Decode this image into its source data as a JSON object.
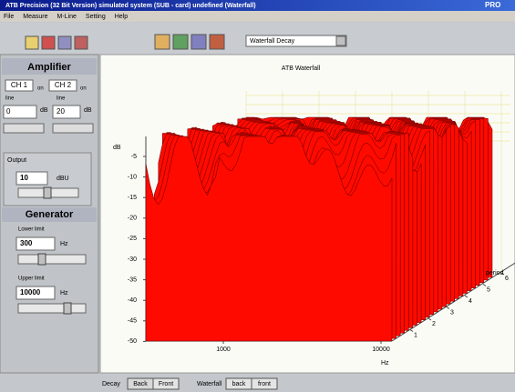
{
  "window": {
    "title": "ATB Precision (32 Bit Version)  simulated system (SUB - card)  undefined  (Waterfall)",
    "badge": "PRO"
  },
  "menu": [
    "File",
    "Measure",
    "M-Line",
    "Setting",
    "Help"
  ],
  "toolbar": {
    "view_select": "Waterfall Decay"
  },
  "amplifier": {
    "heading": "Amplifier",
    "ch1": "CH 1",
    "ch1_state": "on",
    "ch2": "CH 2",
    "ch2_state": "on",
    "ch1_mode": "line",
    "ch2_mode": "line",
    "ch1_gain": "0",
    "ch2_gain": "20",
    "gain_unit": "dB",
    "output_label": "Output",
    "output": "10",
    "output_unit": "dBU"
  },
  "generator": {
    "heading": "Generator",
    "lower_label": "Lower limit",
    "lower": "300",
    "upper_label": "Upper limit",
    "upper": "10000",
    "unit": "Hz"
  },
  "plot": {
    "title": "ATB Waterfall",
    "y_label": "dB",
    "yticks": [
      -5,
      -10,
      -15,
      -20,
      -25,
      -30,
      -35,
      -40,
      -45,
      -50
    ],
    "x_label": "Hz",
    "xticks": [
      1000,
      10000
    ],
    "z_label": "period",
    "zticks": [
      1,
      2,
      3,
      4,
      5,
      6
    ]
  },
  "footer": {
    "decay": "Decay",
    "decay_back": "Back",
    "decay_front": "Front",
    "waterfall": "Waterfall",
    "wf_back": "back",
    "wf_front": "front"
  }
}
